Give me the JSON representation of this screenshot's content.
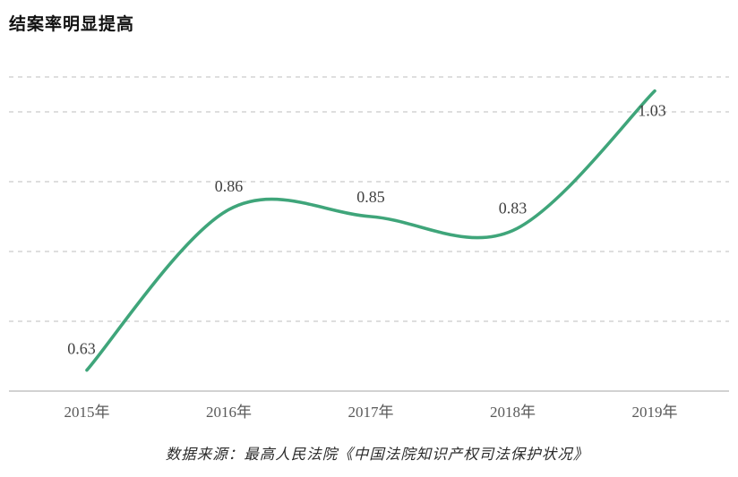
{
  "title": "结案率明显提高",
  "source": "数据来源：最高人民法院《中国法院知识产权司法保护状况》",
  "chart_data": {
    "type": "line",
    "title": "结案率明显提高",
    "categories": [
      "2015年",
      "2016年",
      "2017年",
      "2018年",
      "2019年"
    ],
    "values": [
      0.63,
      0.86,
      0.85,
      0.83,
      1.03
    ],
    "xlabel": "",
    "ylabel": "",
    "ylim": [
      0.6,
      1.08
    ],
    "gridlines": [
      0.7,
      0.8,
      0.9,
      1.0,
      1.05
    ],
    "grid": true,
    "legend": "none",
    "source_note": "数据来源：最高人民法院《中国法院知识产权司法保护状况》",
    "line_color": "#3fa57a",
    "data_label_color": "#404040",
    "tick_label_color": "#595959",
    "gridline_color": "#c9c9c9",
    "baseline_color": "#c4c4c4"
  }
}
